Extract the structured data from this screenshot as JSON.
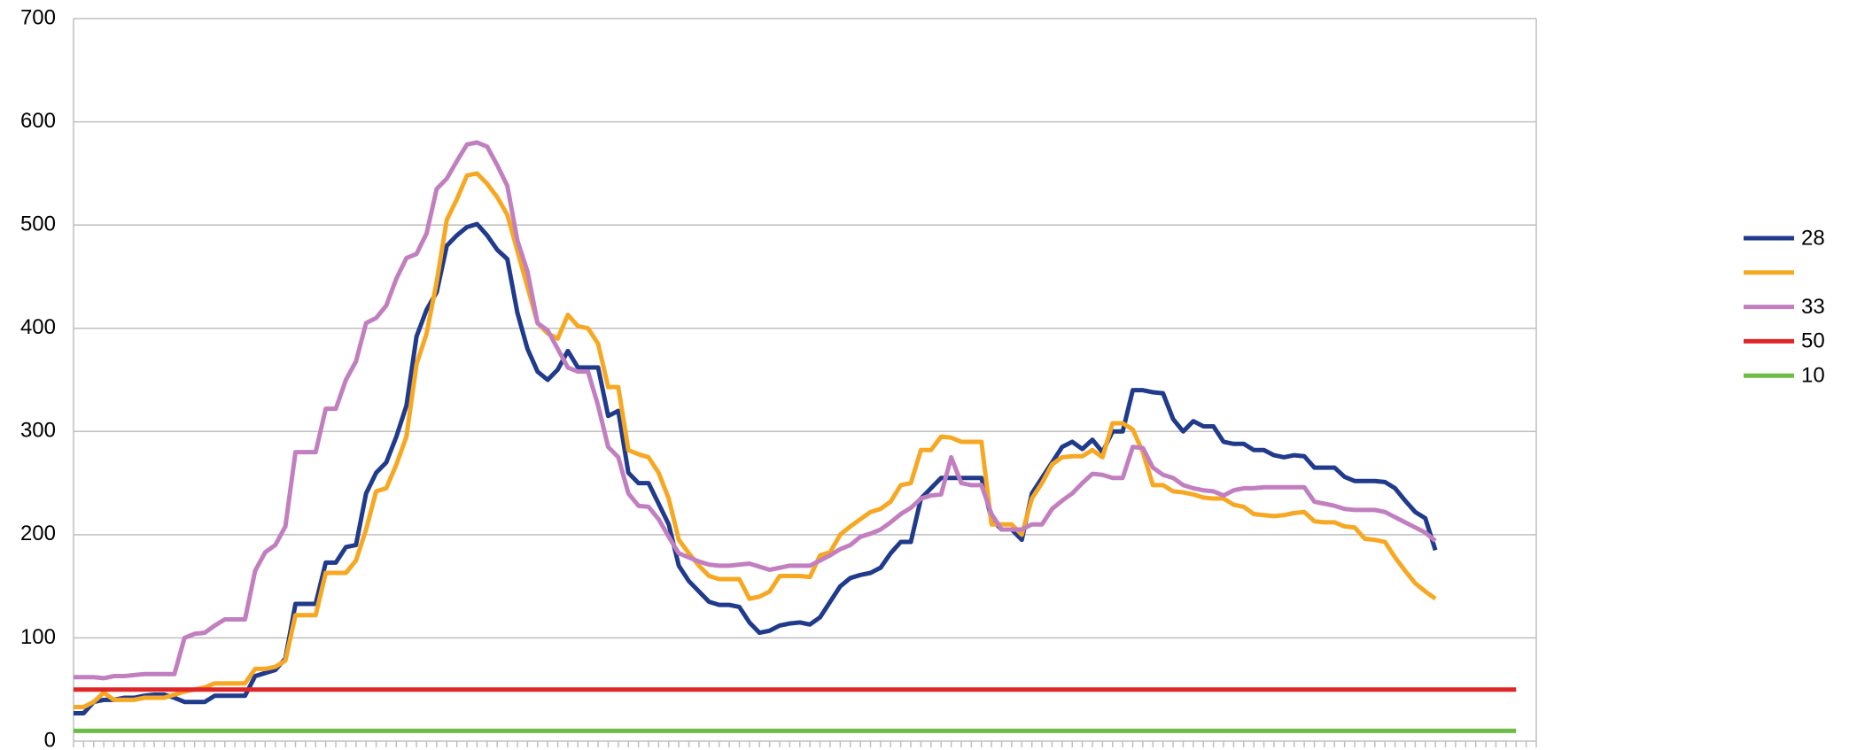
{
  "chart_data": {
    "type": "line",
    "categories": [
      null,
      null,
      null,
      null,
      null,
      null,
      null,
      null,
      null,
      null,
      null,
      null,
      null,
      null,
      null,
      null,
      null,
      null,
      null,
      null,
      null,
      null,
      null,
      null,
      null,
      null,
      null,
      null,
      null,
      null,
      null,
      null,
      null,
      null,
      null,
      null,
      null,
      null,
      null,
      null,
      null,
      null,
      null,
      null,
      null,
      null,
      null,
      null,
      null,
      null,
      null,
      null,
      null,
      null,
      null,
      null,
      null,
      null,
      null,
      null,
      null,
      null,
      null,
      null,
      null,
      null,
      null,
      null,
      null,
      null,
      null,
      null,
      null,
      null,
      null,
      null,
      null,
      null,
      null,
      null,
      null,
      null,
      null,
      null,
      null,
      null,
      null,
      null,
      null,
      null,
      null,
      null,
      null,
      null,
      null,
      null,
      null,
      null,
      null,
      null,
      null,
      null,
      null,
      null,
      null,
      null,
      null,
      null,
      null,
      null,
      null,
      null,
      null,
      null,
      null,
      null,
      null,
      null,
      null,
      null,
      null,
      null,
      null,
      null,
      null,
      null,
      null,
      null,
      null,
      null,
      null,
      null,
      null,
      null,
      null,
      null,
      null,
      null,
      null,
      null,
      null,
      null,
      null,
      null
    ],
    "ylim": [
      0,
      700
    ],
    "yticks": [
      0,
      100,
      200,
      300,
      400,
      500,
      600,
      700
    ],
    "grid": true,
    "legend": "right",
    "series": [
      {
        "name": "28",
        "color": "#203a8c",
        "values": [
          27,
          27,
          38,
          40,
          40,
          42,
          42,
          44,
          45,
          45,
          42,
          38,
          38,
          38,
          44,
          44,
          44,
          44,
          63,
          66,
          69,
          80,
          133,
          133,
          133,
          173,
          173,
          188,
          190,
          240,
          260,
          270,
          295,
          325,
          392,
          418,
          435,
          480,
          490,
          498,
          501,
          490,
          476,
          467,
          415,
          380,
          358,
          350,
          360,
          378,
          362,
          362,
          362,
          315,
          320,
          260,
          250,
          250,
          230,
          210,
          170,
          155,
          145,
          135,
          132,
          132,
          130,
          115,
          105,
          107,
          112,
          114,
          115,
          113,
          120,
          135,
          150,
          158,
          161,
          163,
          168,
          182,
          193,
          193,
          235,
          245,
          255,
          255,
          255,
          255,
          255,
          215,
          205,
          205,
          195,
          240,
          255,
          270,
          285,
          290,
          283,
          292,
          280,
          300,
          300,
          340,
          340,
          338,
          337,
          312,
          300,
          310,
          305,
          305,
          290,
          288,
          288,
          282,
          282,
          277,
          275,
          277,
          276,
          265,
          265,
          265,
          256,
          252,
          252,
          252,
          251,
          245,
          233,
          222,
          216,
          185,
          null,
          null,
          null,
          null,
          null,
          null,
          null,
          null
        ]
      },
      {
        "color": "#f7a823",
        "values": [
          33,
          33,
          38,
          47,
          40,
          40,
          40,
          42,
          42,
          42,
          45,
          48,
          50,
          52,
          56,
          56,
          56,
          56,
          70,
          70,
          72,
          78,
          122,
          122,
          122,
          163,
          163,
          163,
          175,
          205,
          242,
          245,
          268,
          295,
          365,
          395,
          445,
          505,
          525,
          548,
          550,
          540,
          527,
          510,
          475,
          440,
          405,
          395,
          390,
          413,
          402,
          400,
          385,
          343,
          343,
          282,
          278,
          275,
          260,
          235,
          195,
          182,
          170,
          160,
          157,
          157,
          157,
          138,
          140,
          145,
          160,
          160,
          160,
          159,
          180,
          183,
          200,
          208,
          215,
          222,
          225,
          232,
          248,
          250,
          282,
          282,
          295,
          294,
          290,
          290,
          290,
          210,
          210,
          210,
          200,
          235,
          250,
          268,
          275,
          276,
          276,
          282,
          275,
          308,
          308,
          302,
          280,
          248,
          248,
          242,
          241,
          239,
          236,
          235,
          235,
          229,
          227,
          220,
          219,
          218,
          219,
          221,
          222,
          213,
          212,
          212,
          208,
          207,
          196,
          195,
          193,
          178,
          165,
          153,
          145,
          138,
          null,
          null,
          null,
          null,
          null,
          null,
          null,
          null
        ]
      },
      {
        "name": "33",
        "color": "#c27fc0",
        "values": [
          62,
          62,
          62,
          61,
          63,
          63,
          64,
          65,
          65,
          65,
          65,
          100,
          104,
          105,
          112,
          118,
          118,
          118,
          165,
          183,
          190,
          208,
          280,
          280,
          280,
          322,
          322,
          350,
          368,
          405,
          410,
          422,
          448,
          468,
          472,
          492,
          535,
          545,
          562,
          578,
          580,
          576,
          558,
          538,
          485,
          455,
          405,
          398,
          380,
          362,
          358,
          358,
          325,
          285,
          275,
          240,
          228,
          227,
          215,
          198,
          182,
          178,
          174,
          171,
          170,
          170,
          171,
          172,
          169,
          166,
          168,
          170,
          170,
          170,
          175,
          180,
          186,
          190,
          198,
          201,
          205,
          212,
          220,
          226,
          235,
          238,
          239,
          275,
          250,
          248,
          248,
          220,
          205,
          205,
          205,
          210,
          210,
          225,
          233,
          240,
          250,
          259,
          258,
          255,
          255,
          285,
          284,
          265,
          258,
          255,
          248,
          245,
          243,
          242,
          238,
          243,
          245,
          245,
          246,
          246,
          246,
          246,
          246,
          232,
          230,
          228,
          225,
          224,
          224,
          224,
          222,
          217,
          212,
          207,
          202,
          194,
          null,
          null,
          null,
          null,
          null,
          null,
          null,
          null
        ]
      },
      {
        "name": "50",
        "color": "#e02527",
        "values": [
          50,
          50,
          50,
          50,
          50,
          50,
          50,
          50,
          50,
          50,
          50,
          50,
          50,
          50,
          50,
          50,
          50,
          50,
          50,
          50,
          50,
          50,
          50,
          50,
          50,
          50,
          50,
          50,
          50,
          50,
          50,
          50,
          50,
          50,
          50,
          50,
          50,
          50,
          50,
          50,
          50,
          50,
          50,
          50,
          50,
          50,
          50,
          50,
          50,
          50,
          50,
          50,
          50,
          50,
          50,
          50,
          50,
          50,
          50,
          50,
          50,
          50,
          50,
          50,
          50,
          50,
          50,
          50,
          50,
          50,
          50,
          50,
          50,
          50,
          50,
          50,
          50,
          50,
          50,
          50,
          50,
          50,
          50,
          50,
          50,
          50,
          50,
          50,
          50,
          50,
          50,
          50,
          50,
          50,
          50,
          50,
          50,
          50,
          50,
          50,
          50,
          50,
          50,
          50,
          50,
          50,
          50,
          50,
          50,
          50,
          50,
          50,
          50,
          50,
          50,
          50,
          50,
          50,
          50,
          50,
          50,
          50,
          50,
          50,
          50,
          50,
          50,
          50,
          50,
          50,
          50,
          50,
          50,
          50,
          50,
          50,
          50,
          50,
          50,
          50,
          50,
          50,
          50,
          50
        ]
      },
      {
        "name": "10",
        "color": "#6cbd45",
        "values": [
          10,
          10,
          10,
          10,
          10,
          10,
          10,
          10,
          10,
          10,
          10,
          10,
          10,
          10,
          10,
          10,
          10,
          10,
          10,
          10,
          10,
          10,
          10,
          10,
          10,
          10,
          10,
          10,
          10,
          10,
          10,
          10,
          10,
          10,
          10,
          10,
          10,
          10,
          10,
          10,
          10,
          10,
          10,
          10,
          10,
          10,
          10,
          10,
          10,
          10,
          10,
          10,
          10,
          10,
          10,
          10,
          10,
          10,
          10,
          10,
          10,
          10,
          10,
          10,
          10,
          10,
          10,
          10,
          10,
          10,
          10,
          10,
          10,
          10,
          10,
          10,
          10,
          10,
          10,
          10,
          10,
          10,
          10,
          10,
          10,
          10,
          10,
          10,
          10,
          10,
          10,
          10,
          10,
          10,
          10,
          10,
          10,
          10,
          10,
          10,
          10,
          10,
          10,
          10,
          10,
          10,
          10,
          10,
          10,
          10,
          10,
          10,
          10,
          10,
          10,
          10,
          10,
          10,
          10,
          10,
          10,
          10,
          10,
          10,
          10,
          10,
          10,
          10,
          10,
          10,
          10,
          10,
          10,
          10,
          10,
          10,
          10,
          10,
          10,
          10,
          10,
          10,
          10,
          10
        ]
      }
    ]
  }
}
